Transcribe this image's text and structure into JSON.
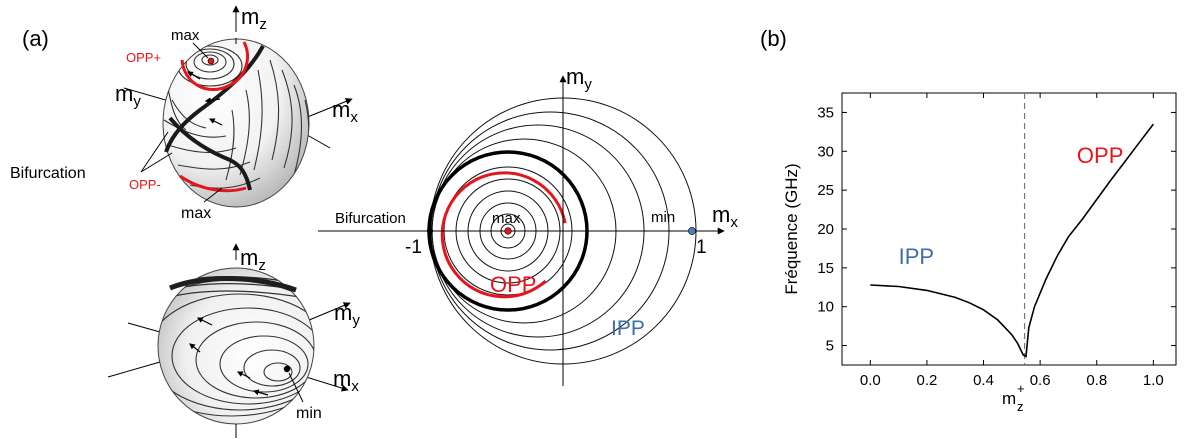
{
  "panel_a": {
    "label": "(a)",
    "sphere_top": {
      "axis_z": "m",
      "axis_z_sub": "z",
      "axis_y": "m",
      "axis_y_sub": "y",
      "axis_x": "m",
      "axis_x_sub": "x",
      "max_top": "max",
      "max_bottom": "max",
      "opp_plus": "OPP+",
      "opp_minus": "OPP-",
      "bifurcation": "Bifurcation"
    },
    "sphere_bottom": {
      "axis_z": "m",
      "axis_z_sub": "z",
      "axis_y": "m",
      "axis_y_sub": "y",
      "axis_x": "m",
      "axis_x_sub": "x",
      "min": "min"
    },
    "projection": {
      "axis_y": "m",
      "axis_y_sub": "y",
      "axis_x": "m",
      "axis_x_sub": "x",
      "bifurcation": "Bifurcation",
      "minus_one": "-1",
      "one": "1",
      "max": "max",
      "min": "min",
      "opp": "OPP",
      "ipp": "IPP"
    }
  },
  "panel_b": {
    "label": "(b)"
  },
  "colors": {
    "opp": "#e8141b",
    "ipp": "#3e6ea8",
    "min_dot": "#4a7fbf",
    "curve": "#000000"
  },
  "chart_data": {
    "type": "line",
    "xlabel": "m",
    "xlabel_sub": "z",
    "xlabel_sup": "+",
    "ylabel": "Fréquence (GHz)",
    "xlim": [
      -0.1,
      1.08
    ],
    "ylim": [
      2.5,
      37.5
    ],
    "x_ticks": [
      "0.0",
      "0.2",
      "0.4",
      "0.6",
      "0.8",
      "1.0"
    ],
    "x_tick_values": [
      0,
      0.2,
      0.4,
      0.6,
      0.8,
      1.0
    ],
    "y_ticks": [
      "5",
      "10",
      "15",
      "20",
      "25",
      "30",
      "35"
    ],
    "y_tick_values": [
      5,
      10,
      15,
      20,
      25,
      30,
      35
    ],
    "dashed_x": 0.545,
    "annotations": [
      {
        "text": "IPP",
        "x": 0.1,
        "y": 15.5,
        "color": "#3e6ea8"
      },
      {
        "text": "OPP",
        "x": 0.73,
        "y": 28.5,
        "color": "#e8141b"
      }
    ],
    "series": [
      {
        "x": [
          0.0,
          0.1,
          0.2,
          0.3,
          0.35,
          0.4,
          0.45,
          0.5,
          0.52,
          0.54,
          0.55,
          0.56,
          0.58,
          0.62,
          0.66,
          0.7,
          0.75,
          0.8,
          0.85,
          0.9,
          0.95,
          1.0
        ],
        "y": [
          12.8,
          12.6,
          12.1,
          11.2,
          10.5,
          9.6,
          8.3,
          6.4,
          5.3,
          3.8,
          3.6,
          7.3,
          10.0,
          13.5,
          16.5,
          19.0,
          21.3,
          23.8,
          26.3,
          28.7,
          31.1,
          33.5
        ]
      }
    ]
  }
}
